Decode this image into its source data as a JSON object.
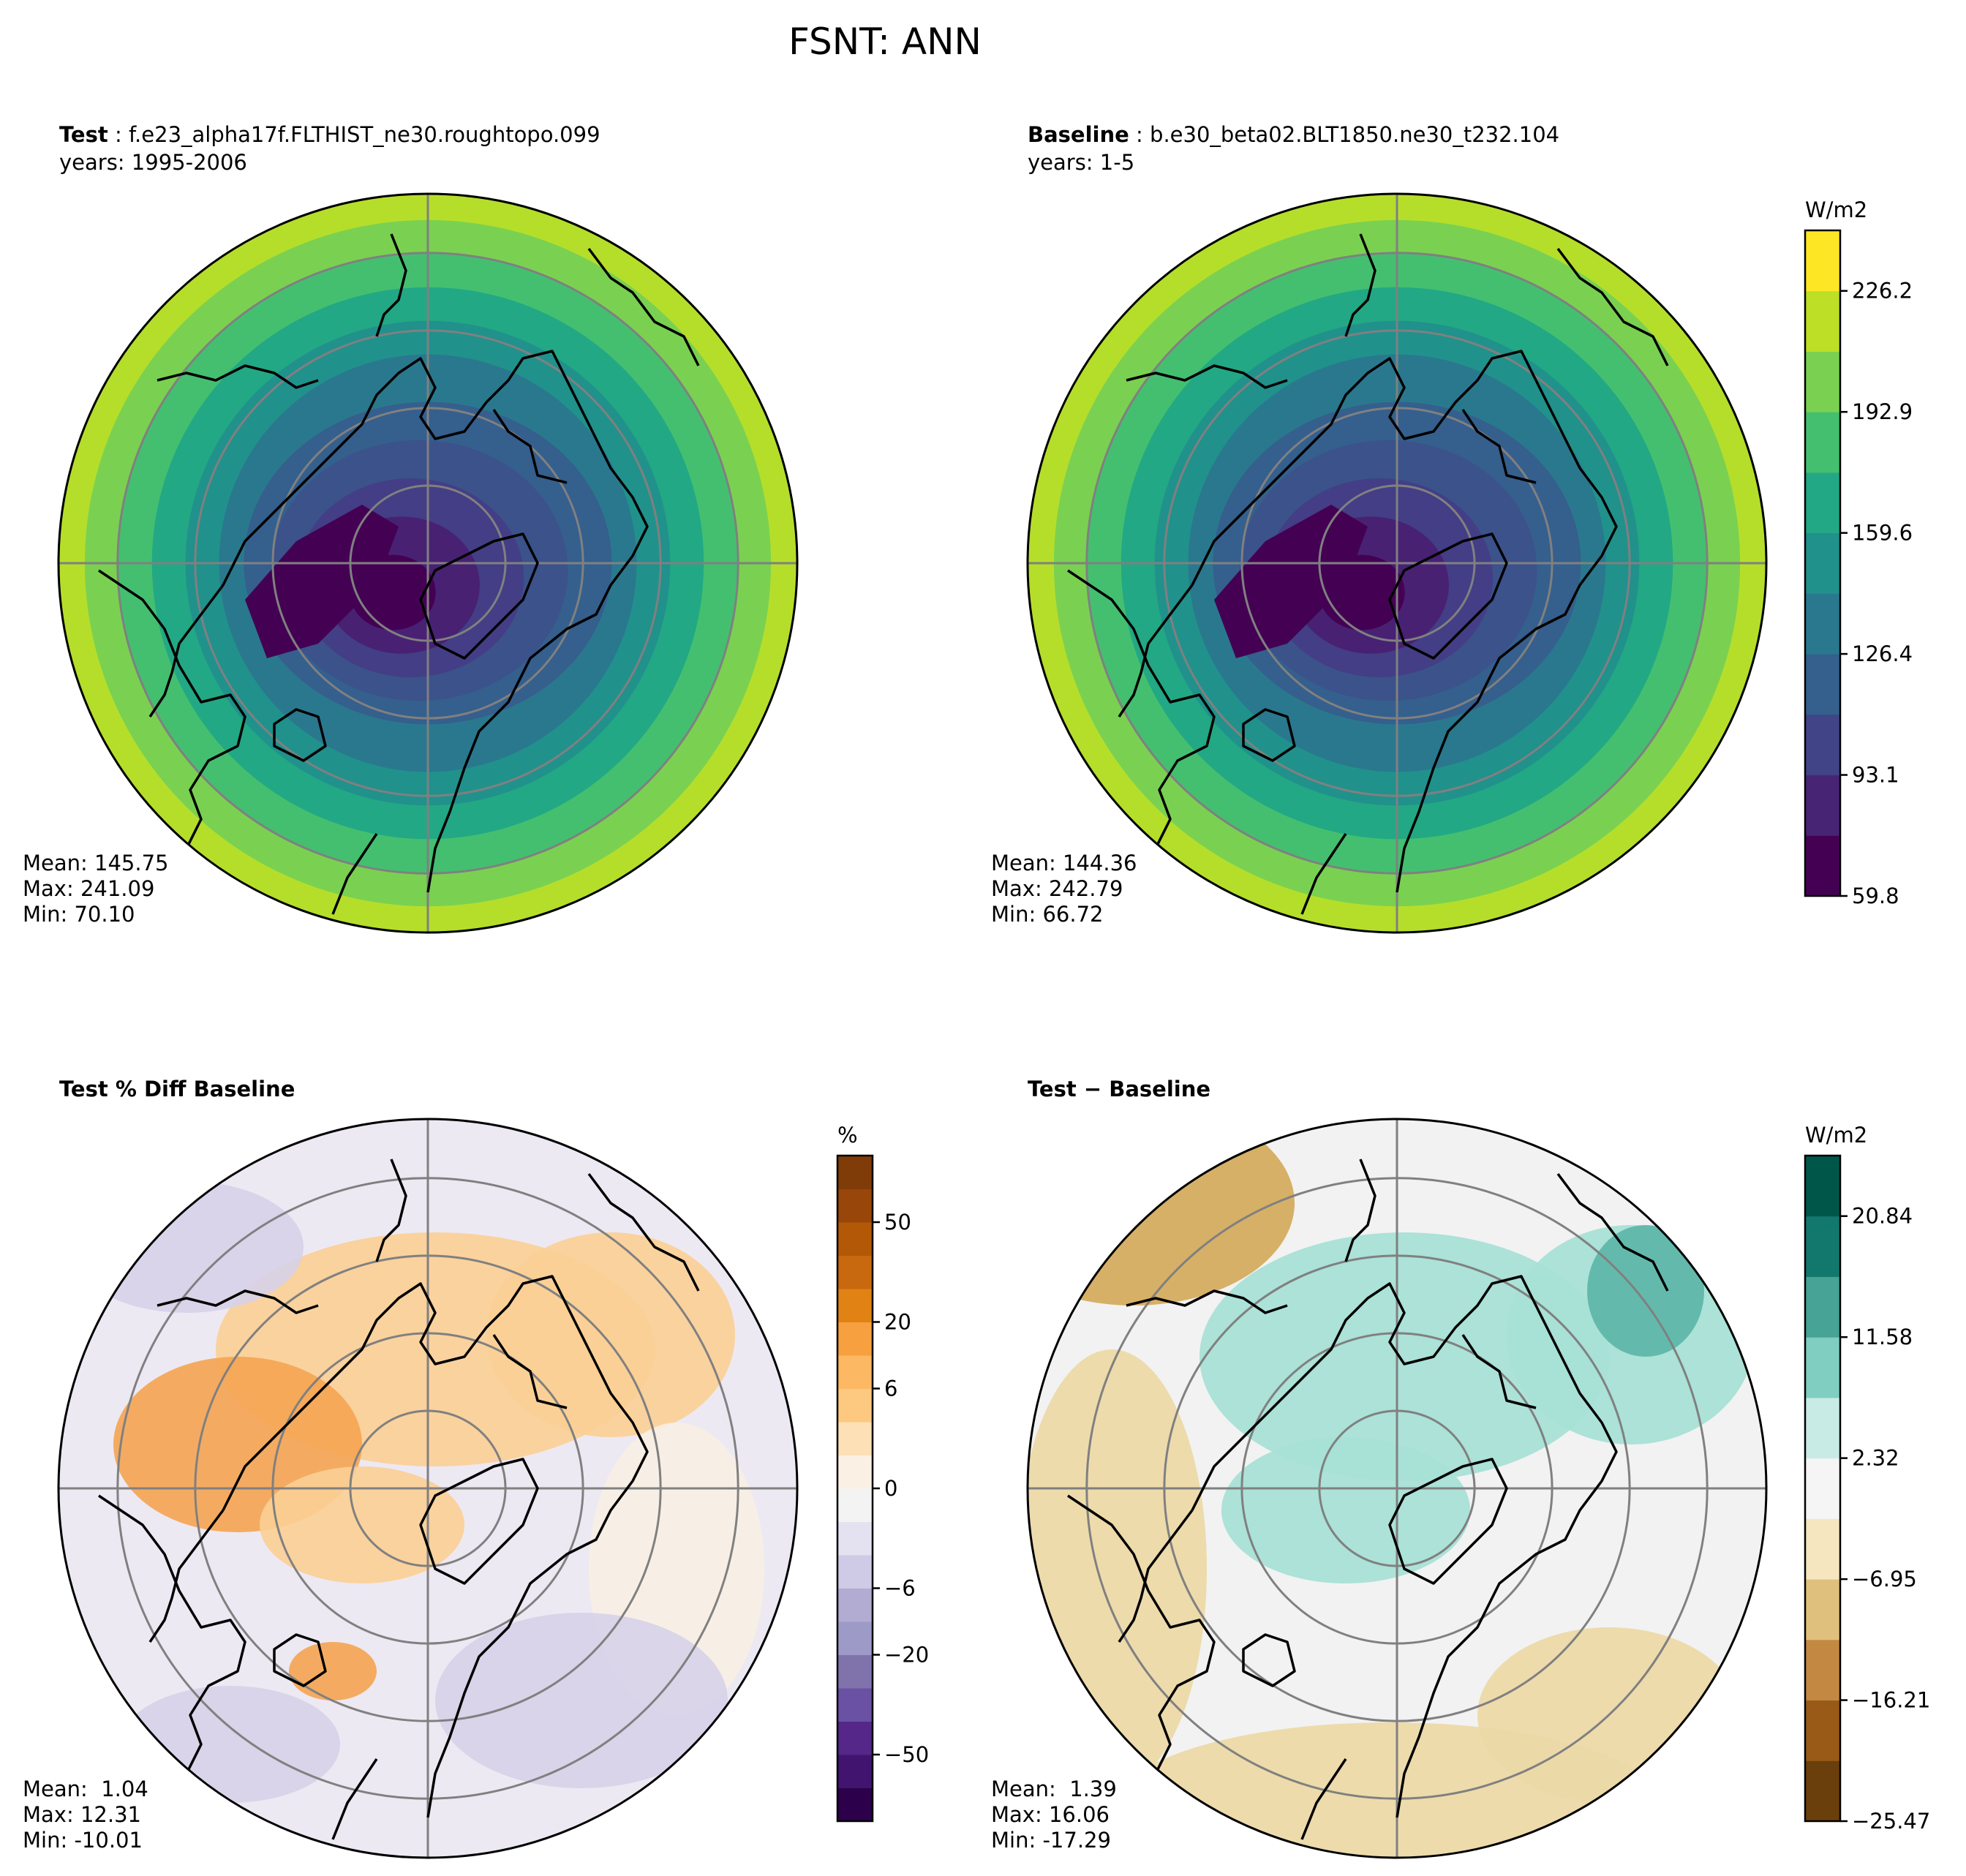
{
  "figure": {
    "title": "FSNT: ANN"
  },
  "panels": {
    "test": {
      "label": "Test",
      "case": "f.e23_alpha17f.FLTHIST_ne30.roughtopo.099",
      "years": "years: 1995-2006",
      "stats": {
        "mean": "Mean: 145.75",
        "max": "Max: 241.09",
        "min": "Min: 70.10"
      }
    },
    "baseline": {
      "label": "Baseline",
      "case": "b.e30_beta02.BLT1850.ne30_t232.104",
      "years": "years: 1-5",
      "stats": {
        "mean": "Mean: 144.36",
        "max": "Max: 242.79",
        "min": "Min: 66.72"
      }
    },
    "pct_diff": {
      "label": "Test % Diff Baseline",
      "stats": {
        "mean": "Mean:  1.04",
        "max": "Max: 12.31",
        "min": "Min: -10.01"
      }
    },
    "diff": {
      "label": "Test",
      "label2": "Baseline",
      "stats": {
        "mean": "Mean:  1.39",
        "max": "Max: 16.06",
        "min": "Min: -17.29"
      }
    }
  },
  "colorbars": {
    "fields": {
      "unit": "W/m2",
      "ticks": [
        "59.8",
        "93.1",
        "126.4",
        "159.6",
        "192.9",
        "226.2"
      ],
      "colors": [
        "#440154",
        "#482475",
        "#414487",
        "#355f8d",
        "#2a788e",
        "#21918c",
        "#22a884",
        "#44bf70",
        "#7ad151",
        "#bddf26",
        "#fde725"
      ]
    },
    "pct": {
      "unit": "%",
      "ticks": [
        "−50",
        "−20",
        "−6",
        "0",
        "6",
        "20",
        "50"
      ],
      "colors": [
        "#2d004b",
        "#40146f",
        "#542788",
        "#6a51a3",
        "#8073ac",
        "#9e9ac8",
        "#b2abd2",
        "#cfcbe6",
        "#e4e2f0",
        "#f3f3f3",
        "#fbf0e4",
        "#fee0b6",
        "#fdc980",
        "#fdb863",
        "#f7a040",
        "#e08214",
        "#c8680f",
        "#b35806",
        "#98460a",
        "#7f3b08"
      ]
    },
    "diff": {
      "unit": "W/m2",
      "ticks": [
        "−25.47",
        "−16.21",
        "−6.95",
        "2.32",
        "11.58",
        "20.84"
      ],
      "colors": [
        "#6b3f0c",
        "#9a5a17",
        "#c38942",
        "#dfc17d",
        "#f5e6bf",
        "#f5f5f5",
        "#c8ebe5",
        "#80cdc1",
        "#46a396",
        "#12786d",
        "#01564a"
      ]
    }
  },
  "map_colors": {
    "fields": {
      "ring_colors": [
        "#b5de2b",
        "#7ad151",
        "#44bf70",
        "#22a884",
        "#21918c",
        "#2a788e",
        "#355f8d",
        "#3b528b",
        "#433e85",
        "#482173",
        "#440154"
      ]
    },
    "pct": {
      "base": "#ede9f3",
      "orange_patch": "#fbcf95",
      "orange_strong": "#f4a451",
      "purple_patch": "#d6d2e8"
    },
    "diff": {
      "base": "#f2f2f2",
      "tan": "#ecd9a8",
      "tan_strong": "#d4ac5f",
      "teal": "#a8e0d6",
      "teal_strong": "#5fb7aa"
    }
  }
}
